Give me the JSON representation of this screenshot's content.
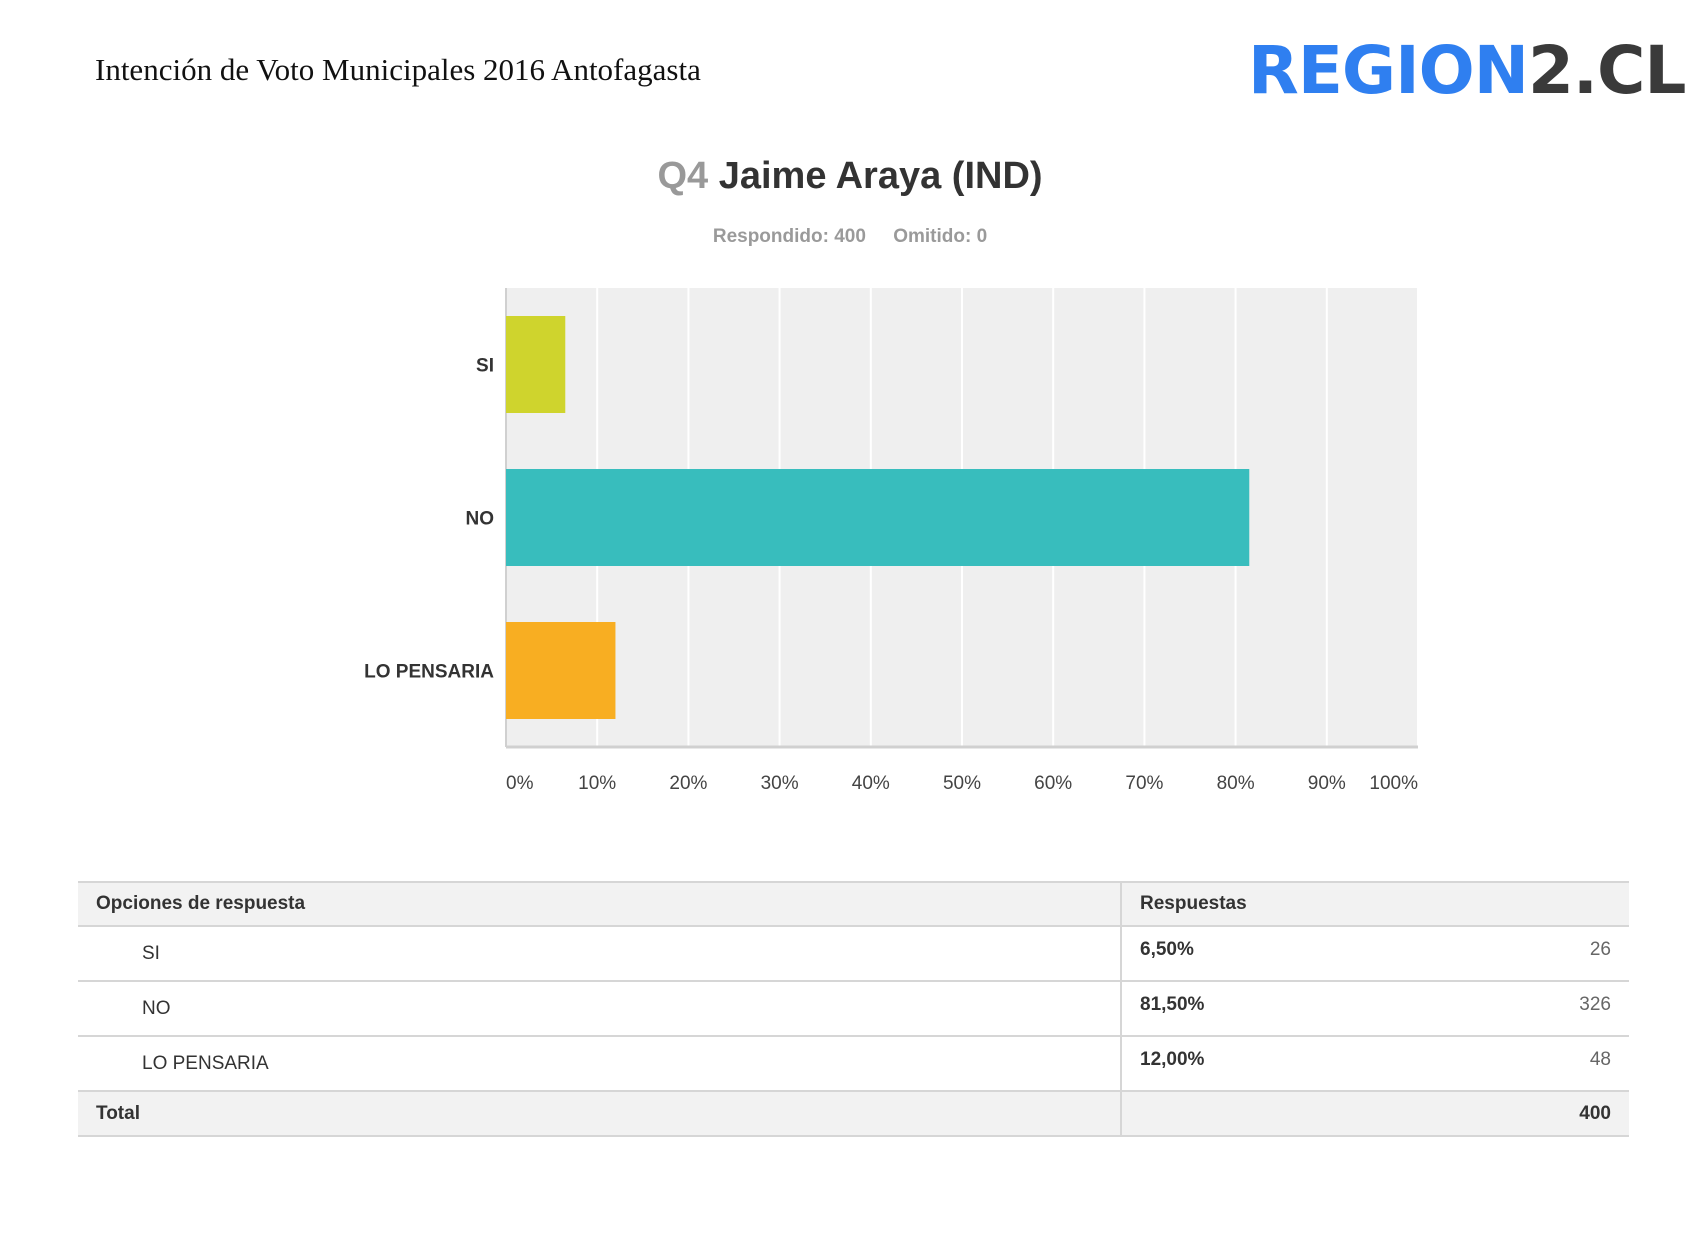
{
  "header": {
    "doc_title": "Intención de Voto Municipales 2016 Antofagasta",
    "logo_part_a": "REGION",
    "logo_part_b": "2.CL"
  },
  "question": {
    "number": "Q4",
    "title": "Jaime Araya (IND)",
    "answered": "Respondido: 400",
    "skipped": "Omitido: 0"
  },
  "chart_data": {
    "type": "bar",
    "orientation": "horizontal",
    "categories": [
      "SI",
      "NO",
      "LO PENSARIA"
    ],
    "values": [
      6.5,
      81.5,
      12.0
    ],
    "colors": [
      "#cfd42d",
      "#38bdbd",
      "#f8ae22"
    ],
    "xlim": [
      0,
      100
    ],
    "ticks": [
      "0%",
      "10%",
      "20%",
      "30%",
      "40%",
      "50%",
      "60%",
      "70%",
      "80%",
      "90%",
      "100%"
    ],
    "grid": true,
    "plot_background": "#efefef"
  },
  "table": {
    "headers": [
      "Opciones de respuesta",
      "Respuestas"
    ],
    "rows": [
      {
        "option": "SI",
        "percent": "6,50%",
        "count": "26"
      },
      {
        "option": "NO",
        "percent": "81,50%",
        "count": "326"
      },
      {
        "option": "LO PENSARIA",
        "percent": "12,00%",
        "count": "48"
      }
    ],
    "total_label": "Total",
    "total_value": "400"
  }
}
